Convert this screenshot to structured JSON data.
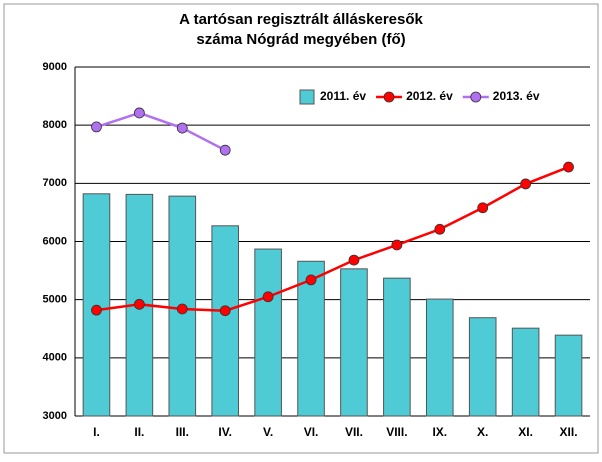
{
  "chart_data": {
    "type": "bar_line",
    "title": "A tartósan regisztrált álláskeresők",
    "subtitle": "száma Nógrád megyében (fő)",
    "categories": [
      "I.",
      "II.",
      "III.",
      "IV.",
      "V.",
      "VI.",
      "VII.",
      "VIII.",
      "IX.",
      "X.",
      "XI.",
      "XII."
    ],
    "series": [
      {
        "name": "2011. év",
        "type": "bar",
        "color": "#4ecbd5",
        "values": [
          6820,
          6810,
          6780,
          6270,
          5870,
          5660,
          5530,
          5370,
          5010,
          4690,
          4510,
          4390
        ]
      },
      {
        "name": "2012. év",
        "type": "line",
        "color": "#ff0000",
        "values": [
          4820,
          4920,
          4840,
          4810,
          5050,
          5340,
          5680,
          5940,
          6210,
          6580,
          6990,
          7280
        ]
      },
      {
        "name": "2013. év",
        "type": "line",
        "color": "#b070f0",
        "values": [
          7970,
          8210,
          7950,
          7570,
          null,
          null,
          null,
          null,
          null,
          null,
          null,
          null
        ]
      }
    ],
    "ylim": [
      3000,
      9000
    ],
    "yticks": [
      3000,
      4000,
      5000,
      6000,
      7000,
      8000,
      9000
    ],
    "grid": true,
    "legend": "top-right"
  }
}
